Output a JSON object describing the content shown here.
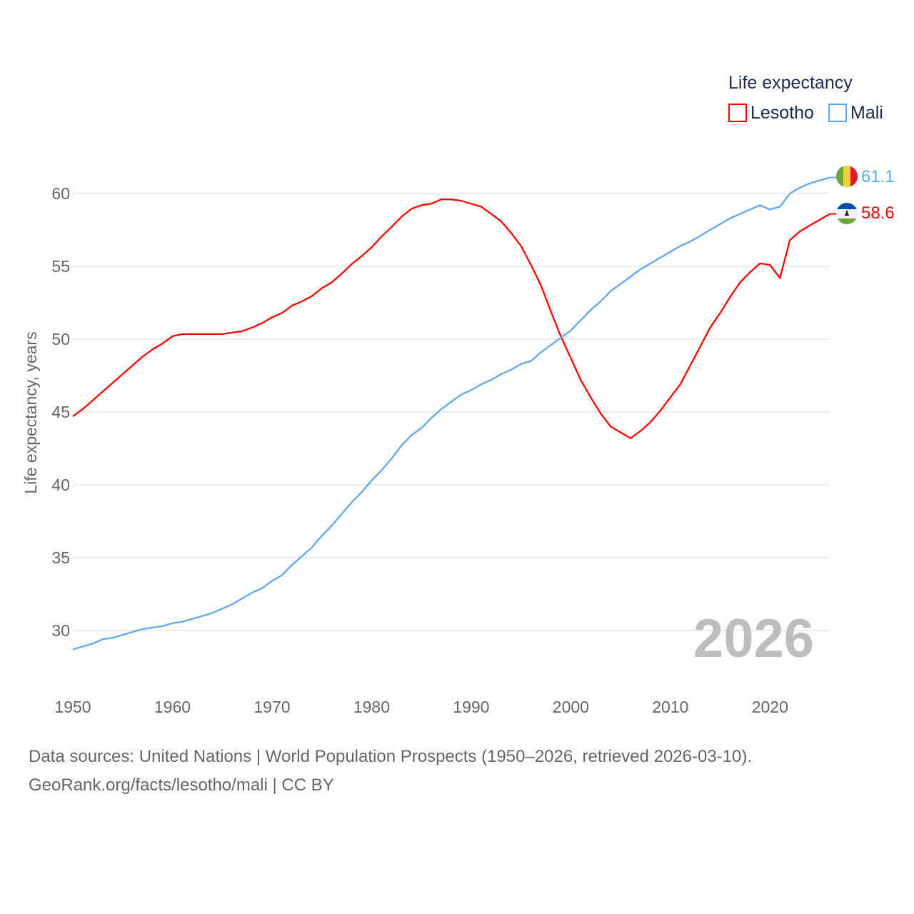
{
  "chart_data": {
    "type": "line",
    "title": "",
    "xlabel": "",
    "ylabel": "Life expectancy, years",
    "xlim": [
      1950,
      2026
    ],
    "ylim": [
      28,
      62
    ],
    "grid": true,
    "x_ticks": [
      "1950",
      "1960",
      "1970",
      "1980",
      "1990",
      "2000",
      "2010",
      "2020"
    ],
    "y_ticks": [
      "30",
      "35",
      "40",
      "45",
      "50",
      "55",
      "60"
    ],
    "legend": {
      "title": "Life expectancy",
      "placement": "top-right"
    },
    "year_label": "2026",
    "x": [
      1950,
      1951,
      1952,
      1953,
      1954,
      1955,
      1956,
      1957,
      1958,
      1959,
      1960,
      1961,
      1962,
      1963,
      1964,
      1965,
      1966,
      1967,
      1968,
      1969,
      1970,
      1971,
      1972,
      1973,
      1974,
      1975,
      1976,
      1977,
      1978,
      1979,
      1980,
      1981,
      1982,
      1983,
      1984,
      1985,
      1986,
      1987,
      1988,
      1989,
      1990,
      1991,
      1992,
      1993,
      1994,
      1995,
      1996,
      1997,
      1998,
      1999,
      2000,
      2001,
      2002,
      2003,
      2004,
      2005,
      2006,
      2007,
      2008,
      2009,
      2010,
      2011,
      2012,
      2013,
      2014,
      2015,
      2016,
      2017,
      2018,
      2019,
      2020,
      2021,
      2022,
      2023,
      2024,
      2025,
      2026
    ],
    "series": [
      {
        "name": "Lesotho",
        "color": "#ff0000",
        "end_label": "58.6",
        "values": [
          44.7,
          45.2,
          45.8,
          46.4,
          47.0,
          47.6,
          48.2,
          48.8,
          49.3,
          49.7,
          50.2,
          50.35,
          50.35,
          50.35,
          50.35,
          50.35,
          50.45,
          50.55,
          50.8,
          51.1,
          51.5,
          51.8,
          52.3,
          52.6,
          52.95,
          53.5,
          53.9,
          54.5,
          55.15,
          55.7,
          56.3,
          57.05,
          57.7,
          58.4,
          58.95,
          59.2,
          59.3,
          59.6,
          59.6,
          59.5,
          59.3,
          59.1,
          58.6,
          58.1,
          57.3,
          56.4,
          55.1,
          53.7,
          51.9,
          50.2,
          48.7,
          47.2,
          46.0,
          44.9,
          44.0,
          43.6,
          43.2,
          43.7,
          44.3,
          45.1,
          46.0,
          46.9,
          48.2,
          49.5,
          50.8,
          51.8,
          52.9,
          53.9,
          54.6,
          55.2,
          55.1,
          54.2,
          56.8,
          57.4,
          57.8,
          58.2,
          58.6
        ]
      },
      {
        "name": "Mali",
        "color": "#62a8ec",
        "end_label": "61.1",
        "values": [
          28.7,
          28.9,
          29.1,
          29.4,
          29.5,
          29.7,
          29.9,
          30.1,
          30.2,
          30.3,
          30.5,
          30.6,
          30.8,
          31.0,
          31.2,
          31.5,
          31.8,
          32.2,
          32.6,
          32.9,
          33.4,
          33.8,
          34.5,
          35.1,
          35.7,
          36.5,
          37.2,
          38.0,
          38.8,
          39.5,
          40.3,
          41.0,
          41.8,
          42.7,
          43.4,
          43.9,
          44.6,
          45.2,
          45.7,
          46.2,
          46.5,
          46.9,
          47.2,
          47.6,
          47.9,
          48.3,
          48.5,
          49.1,
          49.6,
          50.1,
          50.6,
          51.3,
          52.0,
          52.6,
          53.3,
          53.8,
          54.3,
          54.8,
          55.2,
          55.6,
          56.0,
          56.4,
          56.7,
          57.1,
          57.5,
          57.9,
          58.3,
          58.6,
          58.9,
          59.2,
          58.9,
          59.1,
          60.0,
          60.4,
          60.7,
          60.9,
          61.1
        ]
      }
    ]
  },
  "footer": {
    "sources": "Data sources: United Nations | World Population Prospects (1950–2026, retrieved 2026-03-10).",
    "credit": "GeoRank.org/facts/lesotho/mali | CC BY"
  }
}
